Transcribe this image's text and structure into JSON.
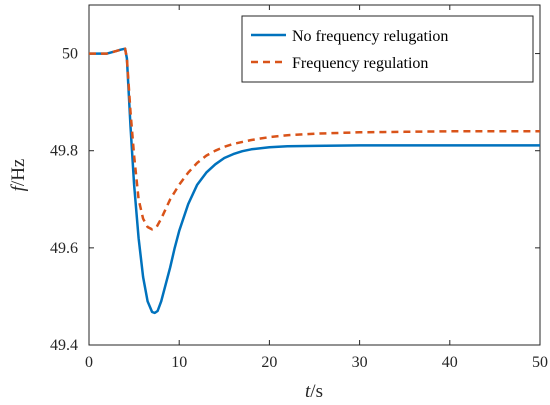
{
  "chart_data": {
    "type": "line",
    "xlabel": {
      "var": "t",
      "unit": "/s"
    },
    "ylabel": {
      "var": "f",
      "unit": "/Hz"
    },
    "xlim": [
      0,
      50
    ],
    "ylim": [
      49.4,
      50.1
    ],
    "x_ticks": [
      0,
      10,
      20,
      30,
      40,
      50
    ],
    "y_ticks": [
      49.4,
      49.6,
      49.8,
      50
    ],
    "x_tick_labels": [
      "0",
      "10",
      "20",
      "30",
      "40",
      "50"
    ],
    "y_tick_labels": [
      "49.4",
      "49.6",
      "49.8",
      "50"
    ],
    "grid": false,
    "legend_position": "top-right",
    "series": [
      {
        "name": "No frequency relugation",
        "color": "#0072BD",
        "style": "solid",
        "x": [
          0,
          1,
          2,
          3,
          3.5,
          4,
          4.2,
          4.6,
          5,
          5.5,
          6,
          6.5,
          7,
          7.3,
          7.6,
          8,
          8.5,
          9,
          9.5,
          10,
          11,
          12,
          13,
          14,
          15,
          16,
          17,
          18,
          20,
          22,
          25,
          30,
          35,
          40,
          45,
          50
        ],
        "y": [
          50,
          50,
          50,
          50.005,
          50.008,
          50.01,
          49.99,
          49.85,
          49.73,
          49.62,
          49.54,
          49.49,
          49.468,
          49.466,
          49.47,
          49.49,
          49.525,
          49.56,
          49.6,
          49.635,
          49.69,
          49.73,
          49.755,
          49.772,
          49.785,
          49.793,
          49.799,
          49.803,
          49.807,
          49.809,
          49.81,
          49.811,
          49.811,
          49.811,
          49.811,
          49.811
        ]
      },
      {
        "name": "Frequency regulation",
        "color": "#D95319",
        "style": "dashed",
        "x": [
          0,
          1,
          2,
          3,
          3.5,
          4,
          4.2,
          4.6,
          5,
          5.5,
          6,
          6.5,
          7,
          7.5,
          8,
          8.5,
          9,
          9.5,
          10,
          11,
          12,
          13,
          14,
          15,
          16,
          18,
          20,
          22,
          25,
          30,
          35,
          40,
          45,
          50
        ],
        "y": [
          50,
          50,
          50,
          50.005,
          50.008,
          50.01,
          49.99,
          49.88,
          49.79,
          49.7,
          49.66,
          49.643,
          49.638,
          49.643,
          49.66,
          49.68,
          49.7,
          49.715,
          49.73,
          49.755,
          49.775,
          49.79,
          49.8,
          49.808,
          49.814,
          49.822,
          49.828,
          49.832,
          49.835,
          49.838,
          49.839,
          49.84,
          49.84,
          49.84
        ]
      }
    ]
  }
}
